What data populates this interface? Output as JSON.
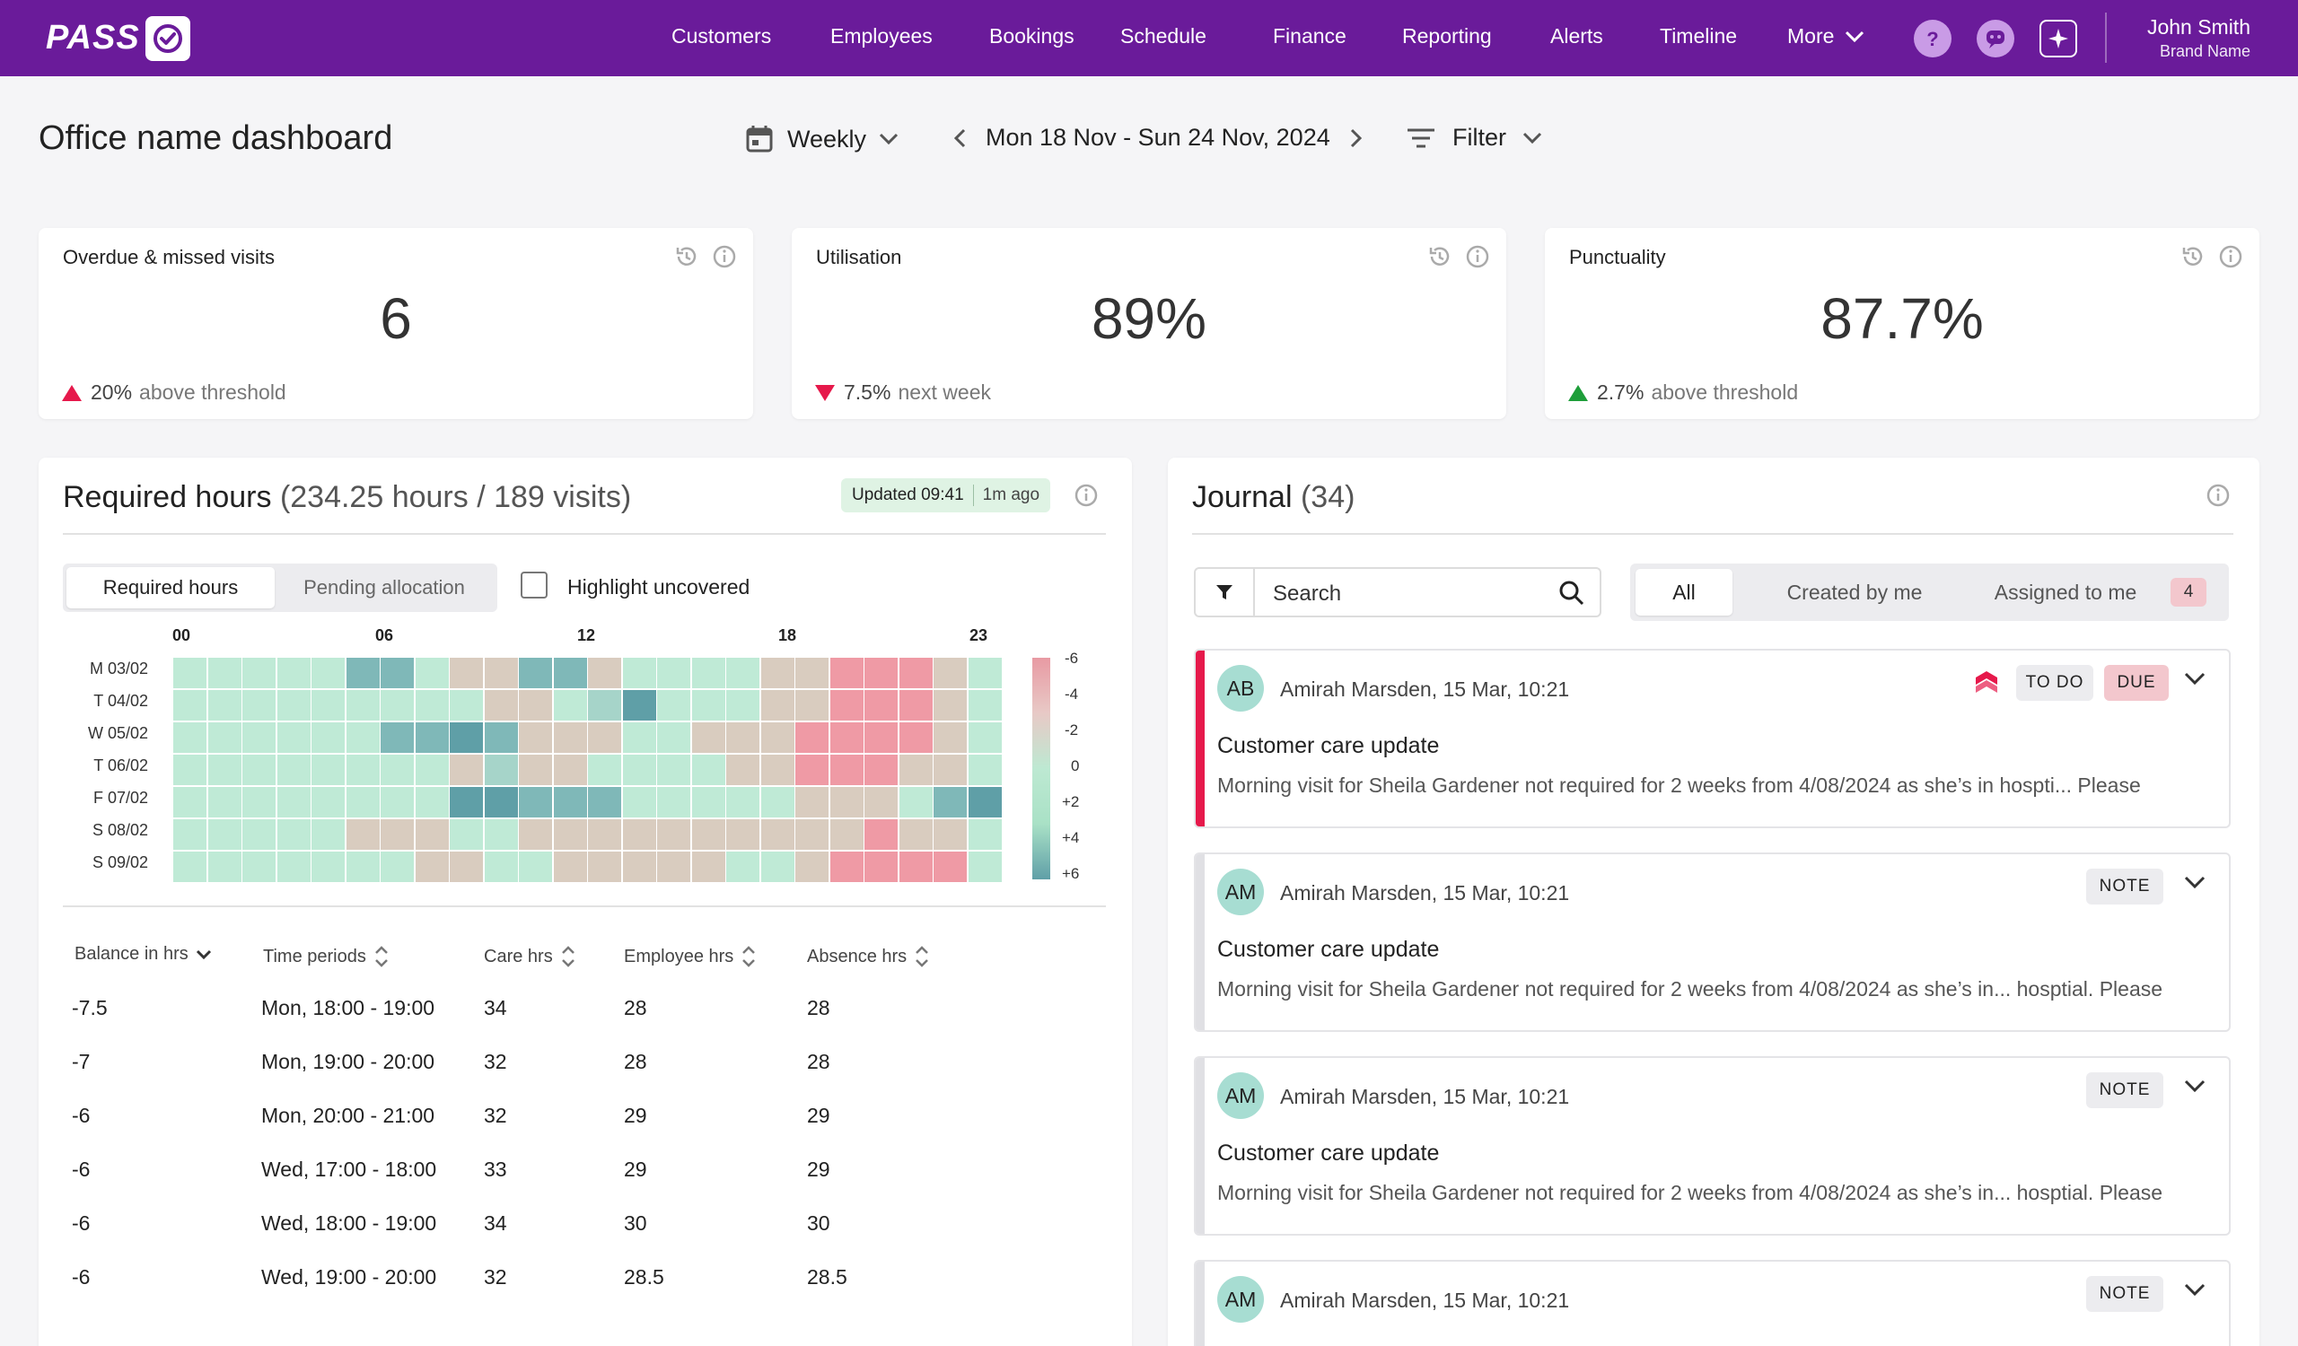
{
  "nav": {
    "logo": "PASS",
    "items": [
      "Customers",
      "Employees",
      "Bookings",
      "Schedule",
      "Finance",
      "Reporting",
      "Alerts",
      "Timeline",
      "More"
    ],
    "user_name": "John Smith",
    "brand_name": "Brand Name",
    "icons": [
      "help-icon",
      "chat-bubble-icon",
      "sparkle-icon"
    ],
    "accent_color": "#6a1b9a"
  },
  "header": {
    "title": "Office name dashboard",
    "period": "Weekly",
    "date_range": "Mon 18 Nov - Sun 24 Nov, 2024",
    "filter": "Filter"
  },
  "kpis": [
    {
      "title": "Overdue & missed visits",
      "value": "6",
      "delta_value": "20%",
      "delta_text": "above threshold",
      "direction": "up",
      "color": "#e6194b"
    },
    {
      "title": "Utilisation",
      "value": "89%",
      "delta_value": "7.5%",
      "delta_text": "next week",
      "direction": "down",
      "color": "#e6194b"
    },
    {
      "title": "Punctuality",
      "value": "87.7%",
      "delta_value": "2.7%",
      "delta_text": "above threshold",
      "direction": "up",
      "color": "#1e9e3a"
    }
  ],
  "required_hours": {
    "title": "Required hours",
    "subtitle": "(234.25 hours / 189 visits)",
    "updated": "Updated 09:41",
    "ago": "1m ago",
    "toggle": [
      "Required hours",
      "Pending allocation"
    ],
    "toggle_active": 0,
    "highlight_label": "Highlight uncovered",
    "hour_labels": [
      "00",
      "06",
      "12",
      "18",
      "23"
    ],
    "days": [
      "M 03/02",
      "T 04/02",
      "W 05/02",
      "T 06/02",
      "F 07/02",
      "S 08/02",
      "S 09/02"
    ],
    "legend": [
      "-6",
      "-4",
      "-2",
      "0",
      "+2",
      "+4",
      "+6"
    ],
    "heatmap": [
      [
        1,
        1,
        1,
        1,
        1,
        4,
        4,
        1,
        2,
        2,
        4,
        4,
        2,
        1,
        1,
        1,
        1,
        2,
        2,
        6,
        6,
        6,
        2,
        1
      ],
      [
        1,
        1,
        1,
        1,
        1,
        1,
        1,
        1,
        1,
        2,
        2,
        1,
        3,
        5,
        1,
        1,
        1,
        2,
        2,
        6,
        6,
        6,
        2,
        1
      ],
      [
        1,
        1,
        1,
        1,
        1,
        1,
        4,
        4,
        5,
        4,
        2,
        2,
        2,
        1,
        1,
        2,
        2,
        2,
        6,
        6,
        6,
        6,
        2,
        1
      ],
      [
        1,
        1,
        1,
        1,
        1,
        1,
        1,
        1,
        2,
        3,
        2,
        2,
        1,
        1,
        1,
        1,
        2,
        2,
        6,
        6,
        6,
        2,
        2,
        1
      ],
      [
        1,
        1,
        1,
        1,
        1,
        1,
        1,
        1,
        5,
        5,
        4,
        4,
        4,
        1,
        1,
        1,
        1,
        1,
        2,
        2,
        2,
        1,
        4,
        5
      ],
      [
        1,
        1,
        1,
        1,
        1,
        2,
        2,
        2,
        1,
        1,
        2,
        2,
        2,
        2,
        2,
        2,
        2,
        2,
        2,
        2,
        6,
        2,
        2,
        1
      ],
      [
        1,
        1,
        1,
        1,
        1,
        1,
        1,
        2,
        2,
        1,
        1,
        2,
        2,
        2,
        2,
        2,
        1,
        1,
        2,
        6,
        6,
        6,
        6,
        1
      ]
    ],
    "columns": [
      "Balance in hrs",
      "Time periods",
      "Care hrs",
      "Employee hrs",
      "Absence hrs"
    ],
    "rows": [
      [
        "-7.5",
        "Mon, 18:00 - 19:00",
        "34",
        "28",
        "28"
      ],
      [
        "-7",
        "Mon, 19:00 - 20:00",
        "32",
        "28",
        "28"
      ],
      [
        "-6",
        "Mon, 20:00 - 21:00",
        "32",
        "29",
        "29"
      ],
      [
        "-6",
        "Wed, 17:00 - 18:00",
        "33",
        "29",
        "29"
      ],
      [
        "-6",
        "Wed, 18:00 - 19:00",
        "34",
        "30",
        "30"
      ],
      [
        "-6",
        "Wed, 19:00 - 20:00",
        "32",
        "28.5",
        "28.5"
      ]
    ]
  },
  "journal": {
    "title": "Journal",
    "count": "(34)",
    "search_placeholder": "Search",
    "tabs": [
      "All",
      "Created by me",
      "Assigned to me"
    ],
    "assigned_count": "4",
    "entries": [
      {
        "initials": "AB",
        "meta": "Amirah Marsden, 15 Mar, 10:21",
        "status": "TO DO",
        "due": "DUE",
        "title": "Customer care update",
        "body": "Morning visit for Sheila Gardener not required for 2 weeks from 4/08/2024 as she’s in hospti... Please"
      },
      {
        "initials": "AM",
        "meta": "Amirah Marsden, 15 Mar, 10:21",
        "status": "NOTE",
        "title": "Customer care update",
        "body": "Morning visit for Sheila Gardener not required for 2 weeks from 4/08/2024 as she’s in... hosptial. Please"
      },
      {
        "initials": "AM",
        "meta": "Amirah Marsden, 15 Mar, 10:21",
        "status": "NOTE",
        "title": "Customer care update",
        "body": "Morning visit for Sheila Gardener not required for 2 weeks from 4/08/2024 as she’s in... hosptial. Please"
      },
      {
        "initials": "AM",
        "meta": "Amirah Marsden, 15 Mar, 10:21",
        "status": "NOTE",
        "title": "",
        "body": ""
      }
    ]
  }
}
